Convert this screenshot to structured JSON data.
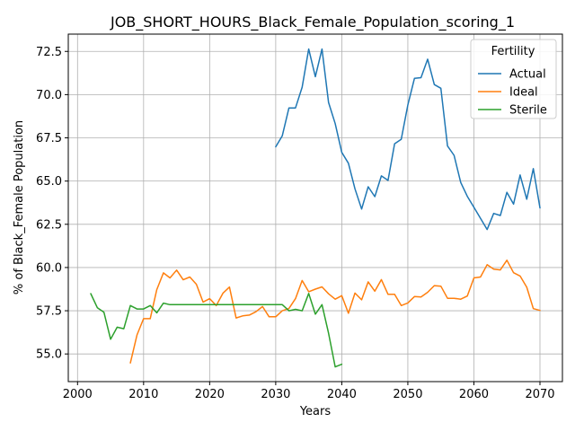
{
  "chart_data": {
    "type": "line",
    "title": "JOB_SHORT_HOURS_Black_Female_Population_scoring_1",
    "xlabel": "Years",
    "ylabel": "% of Black_Female Population",
    "xlim": [
      1998.6,
      2073.4
    ],
    "ylim": [
      53.4,
      73.5
    ],
    "xticks": [
      2000,
      2010,
      2020,
      2030,
      2040,
      2050,
      2060,
      2070
    ],
    "yticks": [
      55.0,
      57.5,
      60.0,
      62.5,
      65.0,
      67.5,
      70.0,
      72.5
    ],
    "grid": true,
    "legend": {
      "title": "Fertility",
      "position": "top-right"
    },
    "series": [
      {
        "name": "Actual",
        "color": "#1f77b4",
        "x": [
          2030,
          2031,
          2032,
          2033,
          2034,
          2035,
          2036,
          2037,
          2038,
          2039,
          2040,
          2041,
          2042,
          2043,
          2044,
          2045,
          2046,
          2047,
          2048,
          2049,
          2050,
          2051,
          2052,
          2053,
          2054,
          2055,
          2056,
          2057,
          2058,
          2059,
          2060,
          2061,
          2062,
          2063,
          2064,
          2065,
          2066,
          2067,
          2068,
          2069,
          2070
        ],
        "values": [
          66.98,
          67.62,
          69.23,
          69.23,
          70.43,
          72.64,
          71.04,
          72.64,
          69.55,
          68.32,
          66.66,
          66.03,
          64.55,
          63.38,
          64.67,
          64.1,
          65.3,
          65.04,
          67.16,
          67.42,
          69.39,
          70.94,
          70.98,
          72.05,
          70.58,
          70.37,
          67.03,
          66.49,
          64.92,
          64.12,
          63.48,
          62.85,
          62.2,
          63.13,
          63.01,
          64.35,
          63.67,
          65.35,
          63.95,
          65.72,
          63.45
        ]
      },
      {
        "name": "Ideal",
        "color": "#ff7f0e",
        "x": [
          2008,
          2009,
          2010,
          2011,
          2012,
          2013,
          2014,
          2015,
          2016,
          2017,
          2018,
          2019,
          2020,
          2021,
          2022,
          2023,
          2024,
          2025,
          2026,
          2027,
          2028,
          2029,
          2030,
          2031,
          2032,
          2033,
          2034,
          2035,
          2036,
          2037,
          2038,
          2039,
          2040,
          2041,
          2042,
          2043,
          2044,
          2045,
          2046,
          2047,
          2048,
          2049,
          2050,
          2051,
          2052,
          2053,
          2054,
          2055,
          2056,
          2057,
          2058,
          2059,
          2060,
          2061,
          2062,
          2063,
          2064,
          2065,
          2066,
          2067,
          2068,
          2069,
          2070
        ],
        "values": [
          54.48,
          56.1,
          57.04,
          57.04,
          58.72,
          59.69,
          59.4,
          59.85,
          59.29,
          59.45,
          59.03,
          58.0,
          58.2,
          57.8,
          58.51,
          58.87,
          57.08,
          57.2,
          57.25,
          57.44,
          57.74,
          57.15,
          57.15,
          57.5,
          57.63,
          58.2,
          59.25,
          58.6,
          58.75,
          58.88,
          58.48,
          58.17,
          58.37,
          57.35,
          58.52,
          58.13,
          59.17,
          58.63,
          59.3,
          58.45,
          58.45,
          57.8,
          57.95,
          58.32,
          58.3,
          58.57,
          58.95,
          58.92,
          58.22,
          58.22,
          58.17,
          58.35,
          59.4,
          59.45,
          60.16,
          59.91,
          59.86,
          60.42,
          59.7,
          59.51,
          58.86,
          57.62,
          57.52
        ]
      },
      {
        "name": "Sterile",
        "color": "#2ca02c",
        "x": [
          2002,
          2003,
          2004,
          2005,
          2006,
          2007,
          2008,
          2009,
          2010,
          2011,
          2012,
          2013,
          2014,
          2015,
          2016,
          2017,
          2018,
          2019,
          2020,
          2021,
          2022,
          2023,
          2024,
          2025,
          2026,
          2027,
          2028,
          2029,
          2030,
          2031,
          2032,
          2033,
          2034,
          2035,
          2036,
          2037,
          2038,
          2039,
          2040
        ],
        "values": [
          58.49,
          57.67,
          57.41,
          55.85,
          56.55,
          56.46,
          57.8,
          57.6,
          57.6,
          57.8,
          57.38,
          57.94,
          57.85,
          57.85,
          57.85,
          57.85,
          57.85,
          57.85,
          57.85,
          57.85,
          57.85,
          57.85,
          57.85,
          57.85,
          57.85,
          57.85,
          57.85,
          57.85,
          57.85,
          57.85,
          57.5,
          57.58,
          57.5,
          58.5,
          57.3,
          57.85,
          56.2,
          54.25,
          54.4
        ]
      }
    ]
  }
}
